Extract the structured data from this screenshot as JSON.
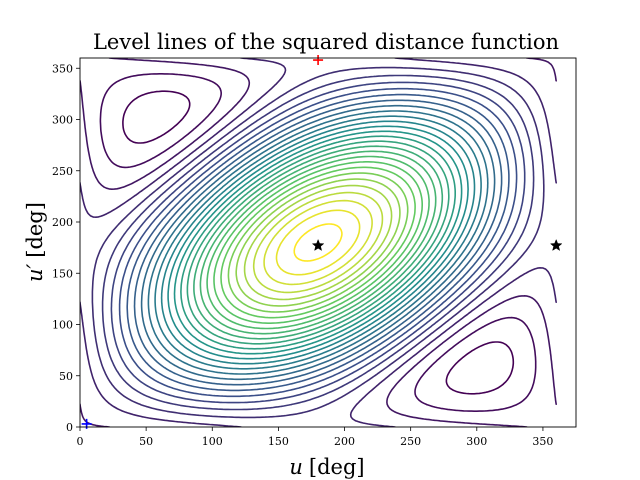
{
  "chart_data": {
    "type": "contour",
    "title": "Level lines of the squared distance function",
    "xlabel": {
      "var": "u",
      "unit": "[deg]"
    },
    "ylabel": {
      "var": "u′",
      "unit": "[deg]"
    },
    "xlim": [
      0,
      375
    ],
    "ylim": [
      0,
      360
    ],
    "xticks": [
      0,
      50,
      100,
      150,
      200,
      250,
      300,
      350
    ],
    "yticks": [
      0,
      50,
      100,
      150,
      200,
      250,
      300,
      350
    ],
    "colormap": [
      "#440154",
      "#3b528b",
      "#21918c",
      "#5ec962",
      "#fde725"
    ],
    "num_levels": 30,
    "field": "f(u,u') = 1 + 0.9·cos(u − u') − cos u − cos u'",
    "markers": [
      {
        "type": "star",
        "x": 180,
        "y": 177,
        "color": "#000000"
      },
      {
        "type": "star",
        "x": 360,
        "y": 177,
        "color": "#000000"
      },
      {
        "type": "plus",
        "x": 5,
        "y": 3,
        "color": "#0000ff"
      },
      {
        "type": "plus",
        "x": 180,
        "y": 358,
        "color": "#ff0000"
      }
    ]
  }
}
